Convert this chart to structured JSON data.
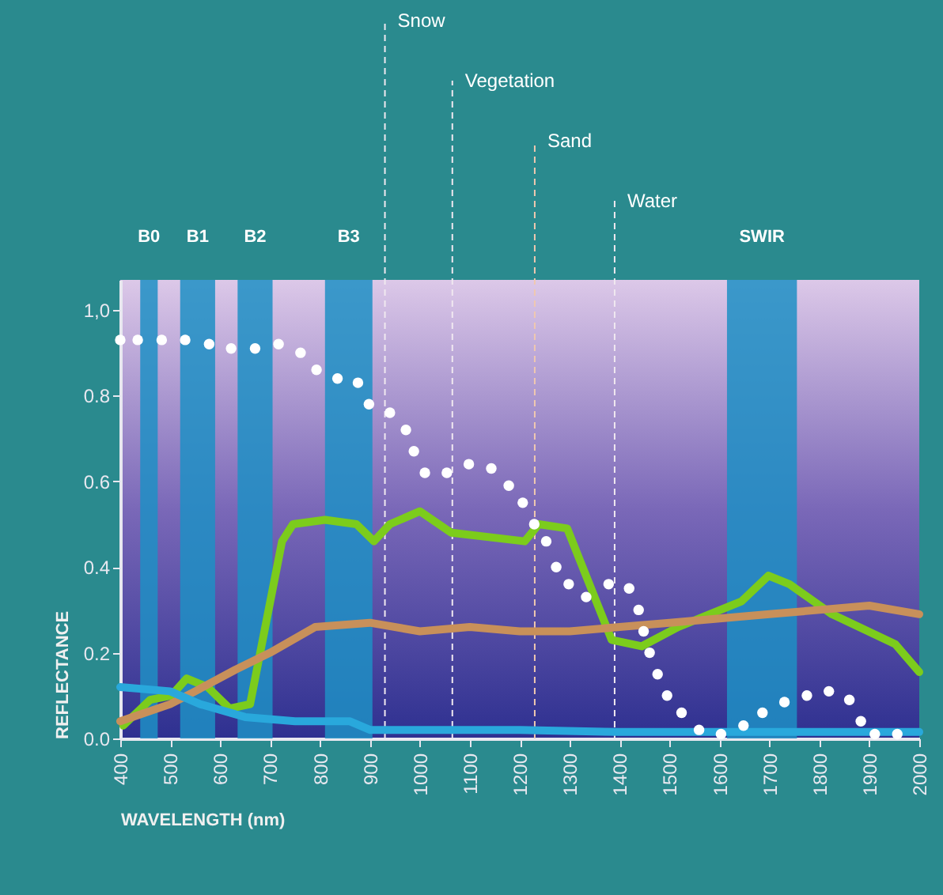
{
  "chart_data": {
    "type": "line",
    "xlabel": "WAVELENGTH (nm)",
    "ylabel": "REFLECTANCE",
    "xlim": [
      400,
      2000
    ],
    "xticks": [
      400,
      500,
      600,
      700,
      800,
      900,
      1000,
      1100,
      1200,
      1300,
      1400,
      1500,
      1600,
      1700,
      1800,
      1900,
      2000
    ],
    "ylim": [
      0,
      1.07
    ],
    "yticks": [
      {
        "value": 0,
        "label": "0.0"
      },
      {
        "value": 0.2,
        "label": "0.2"
      },
      {
        "value": 0.4,
        "label": "0.4"
      },
      {
        "value": 0.6,
        "label": "0.6"
      },
      {
        "value": 0.8,
        "label": "0.8"
      },
      {
        "value": 1,
        "label": "1,0"
      }
    ],
    "grid": false,
    "series": [
      {
        "type": "scatter",
        "color": "#ffffff",
        "x": [
          400,
          435,
          483,
          530,
          578,
          622,
          670,
          717,
          761,
          793,
          835,
          876,
          898,
          940,
          972,
          988,
          1010,
          1054,
          1098,
          1143,
          1178,
          1206,
          1229,
          1253,
          1273,
          1298,
          1333,
          1378,
          1419,
          1438,
          1448,
          1460,
          1476,
          1495,
          1524,
          1559,
          1603,
          1648,
          1686,
          1730,
          1775,
          1819,
          1860,
          1883,
          1911,
          1956
        ],
        "values": [
          0.93,
          0.93,
          0.93,
          0.93,
          0.92,
          0.91,
          0.91,
          0.92,
          0.9,
          0.86,
          0.84,
          0.83,
          0.78,
          0.76,
          0.72,
          0.67,
          0.62,
          0.62,
          0.64,
          0.63,
          0.59,
          0.55,
          0.5,
          0.46,
          0.4,
          0.36,
          0.33,
          0.36,
          0.35,
          0.3,
          0.25,
          0.2,
          0.15,
          0.1,
          0.06,
          0.02,
          0.01,
          0.03,
          0.06,
          0.085,
          0.1,
          0.11,
          0.09,
          0.04,
          0.01,
          0.01
        ]
      },
      {
        "color": "#7ccc1c",
        "x": [
          406,
          460,
          502,
          533,
          575,
          619,
          660,
          724,
          746,
          810,
          873,
          908,
          940,
          1000,
          1063,
          1210,
          1238,
          1295,
          1384,
          1444,
          1517,
          1644,
          1698,
          1740,
          1825,
          1952,
          2000
        ],
        "values": [
          0.03,
          0.09,
          0.1,
          0.14,
          0.12,
          0.07,
          0.08,
          0.46,
          0.5,
          0.51,
          0.5,
          0.46,
          0.5,
          0.53,
          0.48,
          0.46,
          0.5,
          0.49,
          0.23,
          0.215,
          0.26,
          0.32,
          0.38,
          0.36,
          0.29,
          0.22,
          0.155
        ]
      },
      {
        "color": "#c8905a",
        "x": [
          400,
          500,
          550,
          630,
          700,
          790,
          900,
          1000,
          1100,
          1200,
          1300,
          1400,
          1500,
          1600,
          1700,
          1800,
          1900,
          2000
        ],
        "values": [
          0.04,
          0.08,
          0.11,
          0.16,
          0.2,
          0.26,
          0.27,
          0.25,
          0.26,
          0.25,
          0.25,
          0.26,
          0.27,
          0.28,
          0.29,
          0.3,
          0.31,
          0.29
        ]
      },
      {
        "color": "#29a8dc",
        "x": [
          400,
          500,
          560,
          650,
          750,
          860,
          900,
          1000,
          1200,
          1400,
          1600,
          1800,
          2000
        ],
        "values": [
          0.12,
          0.11,
          0.08,
          0.05,
          0.04,
          0.04,
          0.02,
          0.02,
          0.02,
          0.015,
          0.015,
          0.015,
          0.015
        ]
      }
    ],
    "bands": [
      {
        "axis": "x",
        "from": 440,
        "to": 475,
        "label": "B0",
        "color": "#1e8fc4"
      },
      {
        "axis": "x",
        "from": 520,
        "to": 590,
        "label": "B1",
        "color": "#1e8fc4"
      },
      {
        "axis": "x",
        "from": 635,
        "to": 705,
        "label": "B2",
        "color": "#1e8fc4"
      },
      {
        "axis": "x",
        "from": 810,
        "to": 905,
        "label": "B3",
        "color": "#1e8fc4"
      },
      {
        "axis": "x",
        "from": 1615,
        "to": 1755,
        "label": "SWIR",
        "color": "#1e8fc4"
      }
    ],
    "ref_lines": [
      {
        "axis": "x",
        "value": 930,
        "label": "Snow",
        "color": "#f0e8f0",
        "line_style": "dashed"
      },
      {
        "axis": "x",
        "value": 1065,
        "label": "Vegetation",
        "color": "#f0e8f0",
        "line_style": "dashed"
      },
      {
        "axis": "x",
        "value": 1230,
        "label": "Sand",
        "color": "#f0c8b0",
        "line_style": "dashed"
      },
      {
        "axis": "x",
        "value": 1390,
        "label": "Water",
        "color": "#f0e8f0",
        "line_style": "dashed"
      }
    ]
  }
}
